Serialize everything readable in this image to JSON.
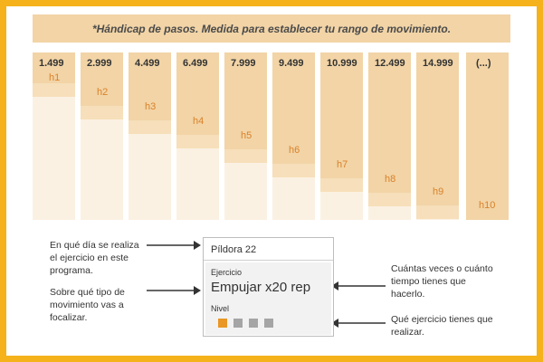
{
  "banner": "*Hándicap de pasos. Medida para establecer tu rango de movimiento.",
  "columns": [
    {
      "value": "1.499",
      "label": "h1"
    },
    {
      "value": "2.999",
      "label": "h2"
    },
    {
      "value": "4.499",
      "label": "h3"
    },
    {
      "value": "6.499",
      "label": "h4"
    },
    {
      "value": "7.999",
      "label": "h5"
    },
    {
      "value": "9.499",
      "label": "h6"
    },
    {
      "value": "10.999",
      "label": "h7"
    },
    {
      "value": "12.499",
      "label": "h8"
    },
    {
      "value": "14.999",
      "label": "h9"
    },
    {
      "value": "(...)",
      "label": "h10"
    }
  ],
  "annotations": {
    "day": "En qué día se realiza el ejercicio en este programa.",
    "movement": "Sobre qué tipo de movimiento vas a focalizar.",
    "times": "Cuántas veces o cuánto tiempo tienes que hacerlo.",
    "exercise": "Qué ejercicio tienes que realizar."
  },
  "card": {
    "title": "Píldora 22",
    "exercise_label": "Ejercicio",
    "exercise_value": "Empujar x20 rep",
    "level_label": "Nivel",
    "level": 1,
    "level_max": 4
  },
  "colors": {
    "frame": "#f5b21b",
    "column": "#f2d4a6",
    "label": "#d9822b",
    "level_active": "#e99726",
    "level_inactive": "#a5a5a5"
  }
}
